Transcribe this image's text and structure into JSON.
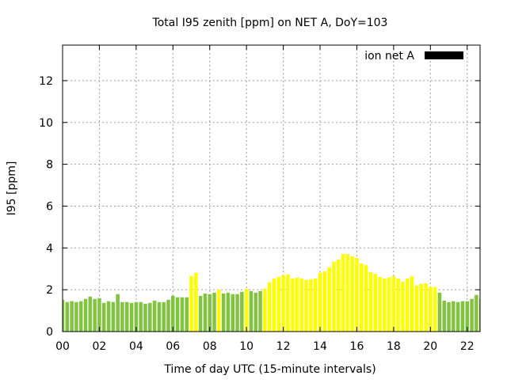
{
  "chart_data": {
    "type": "bar",
    "title": "Total I95 zenith [ppm] on NET A, DoY=103",
    "xlabel": "Time of day UTC (15-minute intervals)",
    "ylabel": "I95 [ppm]",
    "xlim": [
      0,
      22.7
    ],
    "ylim": [
      0,
      13.7
    ],
    "grid": true,
    "legend": {
      "label": "ion net A",
      "placement": "top-right",
      "color": "#000000"
    },
    "xticks": [
      {
        "v": 0,
        "label": "00"
      },
      {
        "v": 2,
        "label": "02"
      },
      {
        "v": 4,
        "label": "04"
      },
      {
        "v": 6,
        "label": "06"
      },
      {
        "v": 8,
        "label": "08"
      },
      {
        "v": 10,
        "label": "10"
      },
      {
        "v": 12,
        "label": "12"
      },
      {
        "v": 14,
        "label": "14"
      },
      {
        "v": 16,
        "label": "16"
      },
      {
        "v": 18,
        "label": "18"
      },
      {
        "v": 20,
        "label": "20"
      },
      {
        "v": 22,
        "label": "22"
      }
    ],
    "yticks": [
      {
        "v": 0,
        "label": "0"
      },
      {
        "v": 2,
        "label": "2"
      },
      {
        "v": 4,
        "label": "4"
      },
      {
        "v": 6,
        "label": "6"
      },
      {
        "v": 8,
        "label": "8"
      },
      {
        "v": 10,
        "label": "10"
      },
      {
        "v": 12,
        "label": "12"
      }
    ],
    "bar_interval_hours": 0.25,
    "color_threshold": 2.0,
    "color_low": "#82c341",
    "color_high": "#ffff00",
    "values": [
      1.52,
      1.41,
      1.45,
      1.41,
      1.45,
      1.56,
      1.67,
      1.56,
      1.6,
      1.37,
      1.45,
      1.41,
      1.79,
      1.41,
      1.41,
      1.37,
      1.41,
      1.41,
      1.33,
      1.37,
      1.48,
      1.41,
      1.41,
      1.52,
      1.71,
      1.64,
      1.64,
      1.64,
      2.65,
      2.81,
      1.71,
      1.82,
      1.79,
      1.86,
      2.01,
      1.82,
      1.86,
      1.79,
      1.79,
      1.9,
      2.05,
      1.94,
      1.86,
      1.94,
      2.05,
      2.35,
      2.54,
      2.62,
      2.69,
      2.73,
      2.54,
      2.58,
      2.54,
      2.47,
      2.5,
      2.54,
      2.81,
      2.88,
      3.07,
      3.33,
      3.45,
      3.71,
      3.71,
      3.6,
      3.52,
      3.26,
      3.18,
      2.84,
      2.77,
      2.62,
      2.54,
      2.58,
      2.65,
      2.54,
      2.39,
      2.54,
      2.65,
      2.2,
      2.28,
      2.31,
      2.13,
      2.13,
      1.86,
      1.48,
      1.41,
      1.45,
      1.41,
      1.45,
      1.45,
      1.56,
      1.75,
      1.56
    ]
  }
}
